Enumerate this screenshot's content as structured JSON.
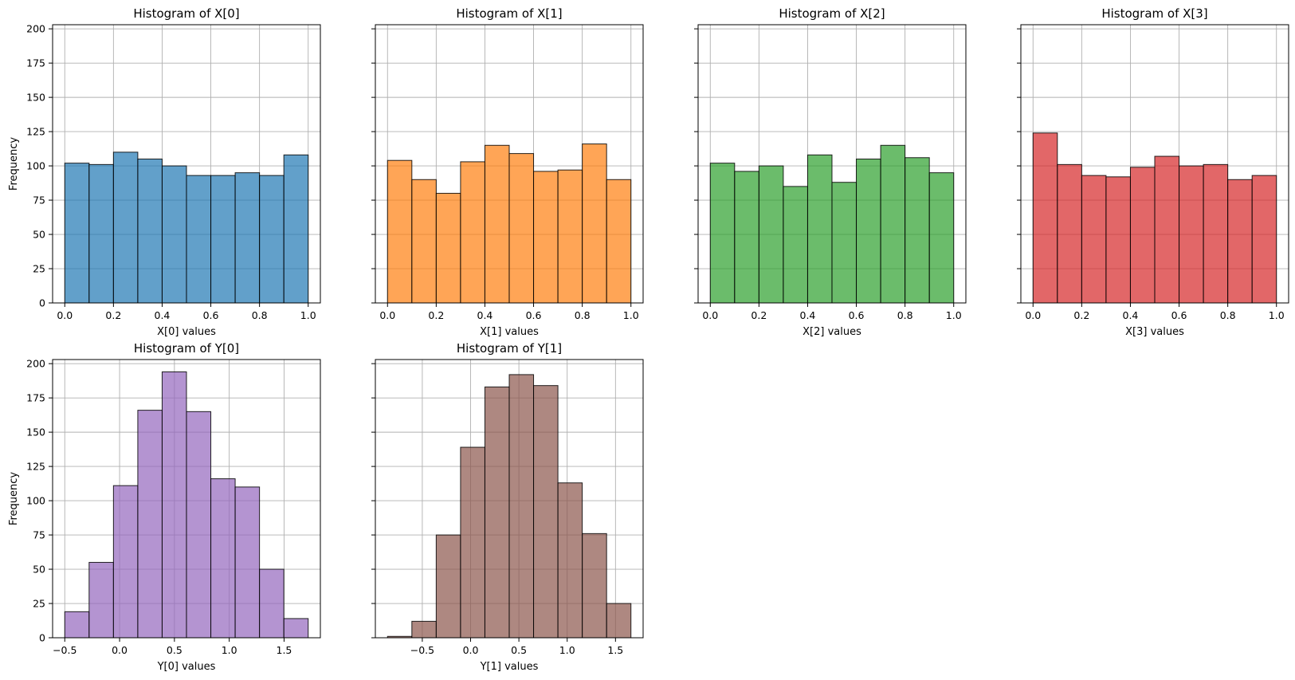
{
  "chart_data": [
    {
      "type": "bar",
      "title": "Histogram of X[0]",
      "xlabel": "X[0] values",
      "ylabel": "Frequency",
      "color": "#1f77b4",
      "bin_edges": [
        0.0,
        0.1,
        0.2,
        0.3,
        0.4,
        0.5,
        0.6,
        0.7,
        0.8,
        0.9,
        1.0
      ],
      "values": [
        102,
        101,
        110,
        105,
        100,
        93,
        93,
        95,
        93,
        108
      ],
      "xlim": [
        -0.05,
        1.05
      ],
      "ylim": [
        0,
        203
      ],
      "xticks": [
        0.0,
        0.2,
        0.4,
        0.6,
        0.8,
        1.0
      ],
      "xtick_labels": [
        "0.0",
        "0.2",
        "0.4",
        "0.6",
        "0.8",
        "1.0"
      ],
      "yticks": [
        0,
        25,
        50,
        75,
        100,
        125,
        150,
        175,
        200
      ],
      "ytick_labels": [
        "0",
        "25",
        "50",
        "75",
        "100",
        "125",
        "150",
        "175",
        "200"
      ],
      "grid": true
    },
    {
      "type": "bar",
      "title": "Histogram of X[1]",
      "xlabel": "X[1] values",
      "ylabel": "",
      "color": "#ff7f0e",
      "bin_edges": [
        0.0,
        0.1,
        0.2,
        0.3,
        0.4,
        0.5,
        0.6,
        0.7,
        0.8,
        0.9,
        1.0
      ],
      "values": [
        104,
        90,
        80,
        103,
        115,
        109,
        96,
        97,
        116,
        90
      ],
      "xlim": [
        -0.05,
        1.05
      ],
      "ylim": [
        0,
        203
      ],
      "xticks": [
        0.0,
        0.2,
        0.4,
        0.6,
        0.8,
        1.0
      ],
      "xtick_labels": [
        "0.0",
        "0.2",
        "0.4",
        "0.6",
        "0.8",
        "1.0"
      ],
      "yticks": [
        0,
        25,
        50,
        75,
        100,
        125,
        150,
        175,
        200
      ],
      "ytick_labels": [],
      "grid": true
    },
    {
      "type": "bar",
      "title": "Histogram of X[2]",
      "xlabel": "X[2] values",
      "ylabel": "",
      "color": "#2ca02c",
      "bin_edges": [
        0.0,
        0.1,
        0.2,
        0.3,
        0.4,
        0.5,
        0.6,
        0.7,
        0.8,
        0.9,
        1.0
      ],
      "values": [
        102,
        96,
        100,
        85,
        108,
        88,
        105,
        115,
        106,
        95
      ],
      "xlim": [
        -0.05,
        1.05
      ],
      "ylim": [
        0,
        203
      ],
      "xticks": [
        0.0,
        0.2,
        0.4,
        0.6,
        0.8,
        1.0
      ],
      "xtick_labels": [
        "0.0",
        "0.2",
        "0.4",
        "0.6",
        "0.8",
        "1.0"
      ],
      "yticks": [
        0,
        25,
        50,
        75,
        100,
        125,
        150,
        175,
        200
      ],
      "ytick_labels": [],
      "grid": true
    },
    {
      "type": "bar",
      "title": "Histogram of X[3]",
      "xlabel": "X[3] values",
      "ylabel": "",
      "color": "#d62728",
      "bin_edges": [
        0.0,
        0.1,
        0.2,
        0.3,
        0.4,
        0.5,
        0.6,
        0.7,
        0.8,
        0.9,
        1.0
      ],
      "values": [
        124,
        101,
        93,
        92,
        99,
        107,
        100,
        101,
        90,
        93
      ],
      "xlim": [
        -0.05,
        1.05
      ],
      "ylim": [
        0,
        203
      ],
      "xticks": [
        0.0,
        0.2,
        0.4,
        0.6,
        0.8,
        1.0
      ],
      "xtick_labels": [
        "0.0",
        "0.2",
        "0.4",
        "0.6",
        "0.8",
        "1.0"
      ],
      "yticks": [
        0,
        25,
        50,
        75,
        100,
        125,
        150,
        175,
        200
      ],
      "ytick_labels": [],
      "grid": true
    },
    {
      "type": "bar",
      "title": "Histogram of Y[0]",
      "xlabel": "Y[0] values",
      "ylabel": "Frequency",
      "color": "#9467bd",
      "bin_edges": [
        -0.5,
        -0.278,
        -0.056,
        0.166,
        0.388,
        0.61,
        0.832,
        1.054,
        1.276,
        1.498,
        1.72
      ],
      "values": [
        19,
        55,
        111,
        166,
        194,
        165,
        116,
        110,
        50,
        14
      ],
      "xlim": [
        -0.611,
        1.831
      ],
      "ylim": [
        0,
        203
      ],
      "xticks": [
        -0.5,
        0.0,
        0.5,
        1.0,
        1.5
      ],
      "xtick_labels": [
        "−0.5",
        "0.0",
        "0.5",
        "1.0",
        "1.5"
      ],
      "yticks": [
        0,
        25,
        50,
        75,
        100,
        125,
        150,
        175,
        200
      ],
      "ytick_labels": [
        "0",
        "25",
        "50",
        "75",
        "100",
        "125",
        "150",
        "175",
        "200"
      ],
      "grid": true
    },
    {
      "type": "bar",
      "title": "Histogram of Y[1]",
      "xlabel": "Y[1] values",
      "ylabel": "",
      "color": "#8c564b",
      "bin_edges": [
        -0.86,
        -0.608,
        -0.356,
        -0.104,
        0.148,
        0.4,
        0.652,
        0.904,
        1.156,
        1.408,
        1.66
      ],
      "values": [
        1,
        12,
        75,
        139,
        183,
        192,
        184,
        113,
        76,
        25
      ],
      "xlim": [
        -0.986,
        1.786
      ],
      "ylim": [
        0,
        203
      ],
      "xticks": [
        -0.5,
        0.0,
        0.5,
        1.0,
        1.5
      ],
      "xtick_labels": [
        "−0.5",
        "0.0",
        "0.5",
        "1.0",
        "1.5"
      ],
      "yticks": [
        0,
        25,
        50,
        75,
        100,
        125,
        150,
        175,
        200
      ],
      "ytick_labels": [],
      "grid": true
    }
  ]
}
